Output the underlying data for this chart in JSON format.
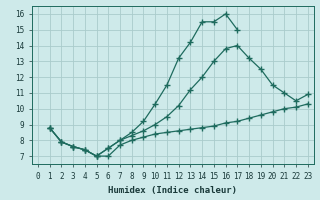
{
  "xlabel": "Humidex (Indice chaleur)",
  "background_color": "#ceeaea",
  "grid_color": "#aacccc",
  "line_color": "#1e6b5e",
  "xlim": [
    -0.5,
    23.5
  ],
  "ylim": [
    6.5,
    16.5
  ],
  "xticks": [
    0,
    1,
    2,
    3,
    4,
    5,
    6,
    7,
    8,
    9,
    10,
    11,
    12,
    13,
    14,
    15,
    16,
    17,
    18,
    19,
    20,
    21,
    22,
    23
  ],
  "yticks": [
    7,
    8,
    9,
    10,
    11,
    12,
    13,
    14,
    15,
    16
  ],
  "curve1_x": [
    1,
    2,
    3,
    4,
    5,
    6,
    7,
    8,
    9,
    10,
    11,
    12,
    13,
    14,
    15,
    16,
    17,
    18,
    19,
    20,
    21,
    22,
    23
  ],
  "curve1_y": [
    8.8,
    7.9,
    7.6,
    7.4,
    7.0,
    7.0,
    7.7,
    8.0,
    8.2,
    8.4,
    8.5,
    8.6,
    8.7,
    8.8,
    8.9,
    9.1,
    9.2,
    9.4,
    9.6,
    9.8,
    10.0,
    10.1,
    10.3
  ],
  "curve2_x": [
    1,
    2,
    3,
    4,
    5,
    6,
    7,
    8,
    9,
    10,
    11,
    12,
    13,
    14,
    15,
    16,
    17,
    18,
    19,
    20,
    21,
    22,
    23
  ],
  "curve2_y": [
    8.8,
    7.9,
    7.6,
    7.4,
    7.0,
    7.5,
    8.0,
    8.3,
    8.6,
    9.0,
    9.5,
    10.2,
    11.2,
    12.0,
    13.0,
    13.8,
    14.0,
    13.2,
    12.5,
    11.5,
    11.0,
    10.5,
    10.9
  ],
  "curve3_x": [
    1,
    2,
    3,
    4,
    5,
    6,
    7,
    8,
    9,
    10,
    11,
    12,
    13,
    14,
    15,
    16,
    17
  ],
  "curve3_y": [
    8.8,
    7.9,
    7.6,
    7.4,
    7.0,
    7.5,
    8.0,
    8.5,
    9.2,
    10.3,
    11.5,
    13.2,
    14.2,
    15.5,
    15.5,
    16.0,
    15.0
  ]
}
